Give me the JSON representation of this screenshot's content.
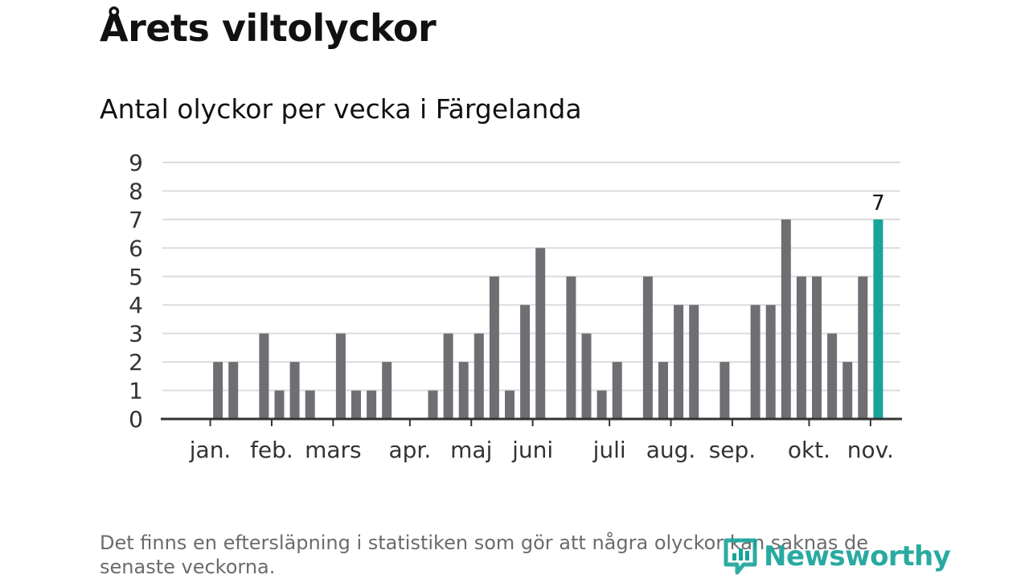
{
  "title": "Årets viltolyckor",
  "subtitle": "Antal olyckor per vecka i Färgelanda",
  "footnote": "Det finns en eftersläpning i statistiken som gör att några olyckor kan saknas de senaste veckorna.",
  "logo_text": "Newsworthy",
  "colors": {
    "bar": "#706e73",
    "highlight": "#1aa39a",
    "grid": "#dcdcdc",
    "axis": "#333333"
  },
  "chart_data": {
    "type": "bar",
    "title": "Antal olyckor per vecka i Färgelanda",
    "xlabel": "",
    "ylabel": "",
    "ylim": [
      0,
      9
    ],
    "yticks": [
      0,
      1,
      2,
      3,
      4,
      5,
      6,
      7,
      8,
      9
    ],
    "grid": true,
    "weeks": [
      1,
      2,
      3,
      4,
      5,
      6,
      7,
      8,
      9,
      10,
      11,
      12,
      13,
      14,
      15,
      16,
      17,
      18,
      19,
      20,
      21,
      22,
      23,
      24,
      25,
      26,
      27,
      28,
      29,
      30,
      31,
      32,
      33,
      34,
      35,
      36,
      37,
      38,
      39,
      40,
      41,
      42,
      43,
      44,
      45
    ],
    "values": [
      0,
      2,
      2,
      0,
      3,
      1,
      2,
      1,
      0,
      3,
      1,
      1,
      2,
      0,
      0,
      1,
      3,
      2,
      3,
      5,
      1,
      4,
      6,
      0,
      5,
      3,
      1,
      2,
      0,
      5,
      2,
      4,
      4,
      0,
      2,
      0,
      4,
      4,
      7,
      5,
      5,
      3,
      2,
      5,
      7
    ],
    "highlight_index": 44,
    "highlight_label": "7",
    "month_labels": [
      {
        "label": "jan.",
        "week": 1.5
      },
      {
        "label": "feb.",
        "week": 5.5
      },
      {
        "label": "mars",
        "week": 9.5
      },
      {
        "label": "apr.",
        "week": 14.5
      },
      {
        "label": "maj",
        "week": 18.5
      },
      {
        "label": "juni",
        "week": 22.5
      },
      {
        "label": "juli",
        "week": 27.5
      },
      {
        "label": "aug.",
        "week": 31.5
      },
      {
        "label": "sep.",
        "week": 35.5
      },
      {
        "label": "okt.",
        "week": 40.5
      },
      {
        "label": "nov.",
        "week": 44.5
      }
    ]
  }
}
